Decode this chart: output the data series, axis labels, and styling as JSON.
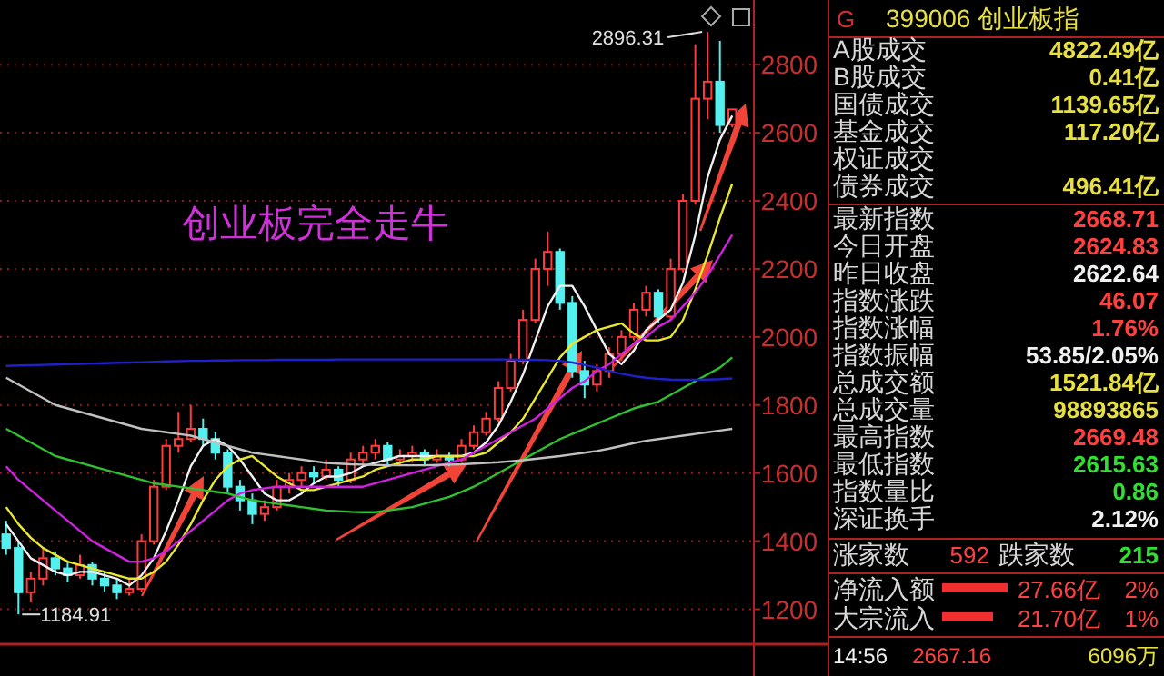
{
  "chart_data": [
    {
      "type": "candlestick",
      "categories": [
        null,
        null,
        null,
        null,
        null,
        null,
        null,
        null,
        null,
        null,
        null,
        null,
        null,
        null,
        null,
        null,
        null,
        null,
        null,
        null,
        null,
        null,
        null,
        null,
        null,
        null,
        null,
        null,
        null,
        null,
        null,
        null,
        null,
        null,
        null,
        null,
        null,
        null,
        null,
        null,
        null,
        null,
        null,
        null,
        null,
        null,
        null,
        null,
        null,
        null,
        null,
        null,
        null,
        null,
        null,
        null,
        null,
        null,
        null,
        null
      ],
      "ohlc": [
        [
          1420,
          1460,
          1360,
          1380
        ],
        [
          1380,
          1400,
          1184.91,
          1250
        ],
        [
          1250,
          1310,
          1220,
          1290
        ],
        [
          1290,
          1380,
          1270,
          1350
        ],
        [
          1350,
          1370,
          1300,
          1320
        ],
        [
          1320,
          1340,
          1280,
          1300
        ],
        [
          1300,
          1360,
          1290,
          1330
        ],
        [
          1330,
          1340,
          1270,
          1290
        ],
        [
          1290,
          1310,
          1250,
          1270
        ],
        [
          1270,
          1290,
          1230,
          1250
        ],
        [
          1250,
          1290,
          1240,
          1260
        ],
        [
          1260,
          1420,
          1250,
          1400
        ],
        [
          1400,
          1580,
          1390,
          1560
        ],
        [
          1560,
          1700,
          1550,
          1680
        ],
        [
          1680,
          1780,
          1660,
          1700
        ],
        [
          1700,
          1800,
          1690,
          1730
        ],
        [
          1730,
          1760,
          1680,
          1700
        ],
        [
          1700,
          1720,
          1640,
          1660
        ],
        [
          1660,
          1670,
          1540,
          1560
        ],
        [
          1560,
          1580,
          1490,
          1520
        ],
        [
          1520,
          1540,
          1450,
          1480
        ],
        [
          1480,
          1520,
          1460,
          1500
        ],
        [
          1500,
          1580,
          1490,
          1560
        ],
        [
          1560,
          1600,
          1540,
          1580
        ],
        [
          1580,
          1620,
          1560,
          1600
        ],
        [
          1600,
          1620,
          1570,
          1590
        ],
        [
          1590,
          1640,
          1580,
          1610
        ],
        [
          1610,
          1620,
          1560,
          1580
        ],
        [
          1580,
          1660,
          1570,
          1640
        ],
        [
          1640,
          1680,
          1620,
          1660
        ],
        [
          1660,
          1700,
          1640,
          1680
        ],
        [
          1680,
          1690,
          1620,
          1640
        ],
        [
          1640,
          1670,
          1620,
          1650
        ],
        [
          1650,
          1680,
          1630,
          1660
        ],
        [
          1660,
          1670,
          1620,
          1640
        ],
        [
          1640,
          1670,
          1630,
          1650
        ],
        [
          1650,
          1660,
          1620,
          1640
        ],
        [
          1640,
          1700,
          1630,
          1680
        ],
        [
          1680,
          1740,
          1670,
          1720
        ],
        [
          1720,
          1780,
          1710,
          1760
        ],
        [
          1760,
          1870,
          1750,
          1850
        ],
        [
          1850,
          1950,
          1840,
          1930
        ],
        [
          1930,
          2080,
          1920,
          2050
        ],
        [
          2050,
          2230,
          2040,
          2200
        ],
        [
          2200,
          2310,
          2150,
          2250
        ],
        [
          2250,
          2260,
          2080,
          2100
        ],
        [
          2100,
          2120,
          1880,
          1900
        ],
        [
          1900,
          1930,
          1820,
          1860
        ],
        [
          1860,
          1920,
          1840,
          1900
        ],
        [
          1900,
          1970,
          1880,
          1950
        ],
        [
          1950,
          2020,
          1930,
          2000
        ],
        [
          2000,
          2100,
          1990,
          2080
        ],
        [
          2080,
          2150,
          2060,
          2130
        ],
        [
          2130,
          2140,
          2040,
          2060
        ],
        [
          2060,
          2230,
          2050,
          2200
        ],
        [
          2200,
          2420,
          2190,
          2400
        ],
        [
          2400,
          2860,
          2390,
          2700
        ],
        [
          2700,
          2896.31,
          2640,
          2750
        ],
        [
          2750,
          2870,
          2600,
          2622.64
        ],
        [
          2624.83,
          2669.48,
          2615.63,
          2668.71
        ]
      ],
      "series": [
        {
          "type": "line",
          "color": "#f0f0f0",
          "values": [
            1450,
            1400,
            1350,
            1330,
            1310,
            1300,
            1310,
            1310,
            1300,
            1290,
            1270,
            1300,
            1350,
            1430,
            1520,
            1620,
            1680,
            1700,
            1680,
            1640,
            1590,
            1540,
            1520,
            1520,
            1540,
            1570,
            1590,
            1590,
            1600,
            1620,
            1630,
            1640,
            1650,
            1650,
            1650,
            1650,
            1650,
            1650,
            1660,
            1690,
            1740,
            1810,
            1890,
            1990,
            2090,
            2150,
            2150,
            2090,
            2020,
            1950,
            1920,
            1960,
            2020,
            2050,
            2080,
            2160,
            2300,
            2470,
            2580,
            2650
          ]
        },
        {
          "type": "line",
          "color": "#e8e830",
          "values": [
            1500,
            1450,
            1410,
            1380,
            1360,
            1340,
            1330,
            1320,
            1310,
            1300,
            1290,
            1290,
            1310,
            1340,
            1390,
            1450,
            1520,
            1580,
            1620,
            1640,
            1650,
            1620,
            1590,
            1570,
            1550,
            1550,
            1560,
            1570,
            1580,
            1590,
            1610,
            1620,
            1630,
            1640,
            1640,
            1650,
            1650,
            1650,
            1650,
            1660,
            1690,
            1720,
            1760,
            1820,
            1880,
            1940,
            1980,
            2000,
            2020,
            2030,
            2040,
            2010,
            1990,
            1990,
            2000,
            2050,
            2140,
            2240,
            2350,
            2450
          ]
        },
        {
          "type": "line",
          "color": "#d020e0",
          "values": [
            1620,
            1580,
            1550,
            1520,
            1490,
            1460,
            1430,
            1400,
            1380,
            1360,
            1340,
            1340,
            1350,
            1370,
            1400,
            1430,
            1460,
            1490,
            1520,
            1540,
            1550,
            1555,
            1560,
            1560,
            1560,
            1560,
            1560,
            1560,
            1560,
            1560,
            1570,
            1580,
            1590,
            1600,
            1610,
            1620,
            1630,
            1640,
            1660,
            1680,
            1700,
            1720,
            1740,
            1760,
            1790,
            1820,
            1850,
            1870,
            1900,
            1920,
            1950,
            1980,
            2000,
            2030,
            2050,
            2090,
            2130,
            2180,
            2240,
            2300
          ]
        },
        {
          "type": "line",
          "color": "#30c030",
          "values": [
            1730,
            1710,
            1690,
            1670,
            1650,
            1640,
            1630,
            1620,
            1610,
            1600,
            1590,
            1580,
            1570,
            1565,
            1560,
            1555,
            1550,
            1545,
            1540,
            1530,
            1520,
            1515,
            1510,
            1505,
            1500,
            1495,
            1490,
            1488,
            1486,
            1485,
            1485,
            1490,
            1495,
            1500,
            1510,
            1520,
            1530,
            1545,
            1560,
            1580,
            1600,
            1620,
            1640,
            1660,
            1680,
            1700,
            1715,
            1730,
            1745,
            1760,
            1775,
            1790,
            1800,
            1810,
            1830,
            1850,
            1870,
            1890,
            1910,
            1940
          ]
        },
        {
          "type": "line",
          "color": "#c0c0c0",
          "values": [
            1880,
            1860,
            1840,
            1820,
            1800,
            1790,
            1780,
            1770,
            1760,
            1750,
            1740,
            1730,
            1725,
            1720,
            1715,
            1710,
            1700,
            1690,
            1680,
            1670,
            1660,
            1655,
            1650,
            1645,
            1640,
            1635,
            1630,
            1628,
            1626,
            1625,
            1624,
            1623,
            1623,
            1623,
            1623,
            1624,
            1625,
            1626,
            1628,
            1630,
            1632,
            1635,
            1638,
            1642,
            1646,
            1650,
            1655,
            1660,
            1665,
            1672,
            1680,
            1688,
            1695,
            1700,
            1705,
            1710,
            1715,
            1720,
            1725,
            1730
          ]
        },
        {
          "type": "line",
          "color": "#2020c8",
          "values": [
            1915,
            1916,
            1917,
            1918,
            1919,
            1920,
            1921,
            1922,
            1923,
            1924,
            1925,
            1926,
            1927,
            1928,
            1929,
            1930,
            1930,
            1931,
            1931,
            1932,
            1932,
            1932,
            1933,
            1933,
            1933,
            1933,
            1933,
            1934,
            1934,
            1934,
            1934,
            1934,
            1934,
            1934,
            1934,
            1934,
            1934,
            1934,
            1934,
            1934,
            1934,
            1934,
            1933,
            1933,
            1932,
            1930,
            1925,
            1918,
            1910,
            1900,
            1892,
            1885,
            1880,
            1877,
            1875,
            1874,
            1874,
            1875,
            1876,
            1878
          ]
        }
      ],
      "ylim": [
        1100,
        2990
      ],
      "yticks": [
        1200,
        1400,
        1600,
        1800,
        2000,
        2200,
        2400,
        2600,
        2800
      ],
      "grid": "y",
      "annotations": [
        "创业板完全走牛",
        "1184.91",
        "2896.31"
      ]
    },
    {
      "type": "other",
      "title": "399006 创业板指",
      "annotations": [
        "G",
        "A股成交",
        "4822.49亿",
        "B股成交",
        "0.41亿",
        "国债成交",
        "1139.65亿",
        "基金成交",
        "117.20亿",
        "权证成交",
        "债券成交",
        "496.41亿",
        "最新指数",
        "2668.71",
        "今日开盘",
        "2624.83",
        "昨日收盘",
        "2622.64",
        "指数涨跌",
        "46.07",
        "指数涨幅",
        "1.76%",
        "指数振幅",
        "53.85/2.05%",
        "总成交额",
        "1521.84亿",
        "总成交量",
        "98893865",
        "最高指数",
        "2669.48",
        "最低指数",
        "2615.63",
        "指数量比",
        "0.86",
        "深证换手",
        "2.12%",
        "涨家数",
        "592",
        "跌家数",
        "215",
        "净流入额",
        "27.66亿",
        "2%",
        "大宗流入",
        "21.70亿",
        "1%",
        "14:56",
        "2667.16",
        "6096万"
      ]
    }
  ]
}
